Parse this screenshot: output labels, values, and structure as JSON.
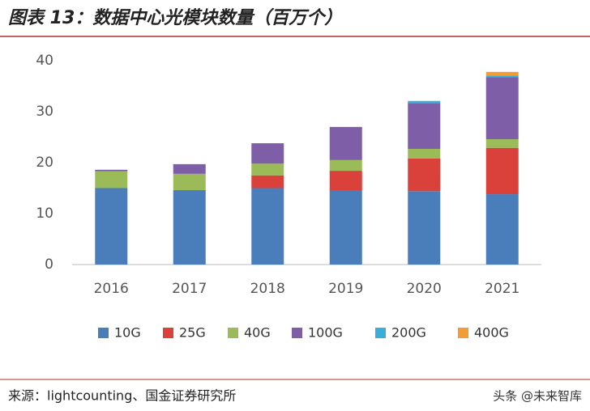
{
  "chart_data": {
    "type": "stacked-bar",
    "title": "图表 13：数据中心光模块数量（百万个）",
    "source": "来源：lightcounting、国金证券研究所",
    "watermark": "头条 @未来智库",
    "categories": [
      "2016",
      "2017",
      "2018",
      "2019",
      "2020",
      "2021"
    ],
    "series": [
      {
        "name": "10G",
        "color": "#4a7ebb",
        "values": [
          15,
          14.6,
          15,
          14.6,
          14.4,
          13.8
        ]
      },
      {
        "name": "25G",
        "color": "#d9413a",
        "values": [
          null,
          null,
          2.5,
          3.8,
          6.4,
          9.1
        ]
      },
      {
        "name": "40G",
        "color": "#9bbb59",
        "values": [
          3.3,
          3.2,
          2.3,
          2.1,
          1.9,
          1.7
        ]
      },
      {
        "name": "100G",
        "color": "#7f5ea8",
        "values": [
          0.3,
          1.9,
          4,
          6.5,
          9,
          12.2
        ]
      },
      {
        "name": "200G",
        "color": "#3aaed8",
        "values": [
          null,
          null,
          null,
          null,
          0.4,
          0.3
        ]
      },
      {
        "name": "400G",
        "color": "#f39c36",
        "values": [
          null,
          null,
          null,
          null,
          null,
          0.7
        ]
      }
    ],
    "ylim": [
      0,
      40
    ],
    "yticks": [
      0,
      10,
      20,
      30,
      40
    ],
    "grid": false
  }
}
